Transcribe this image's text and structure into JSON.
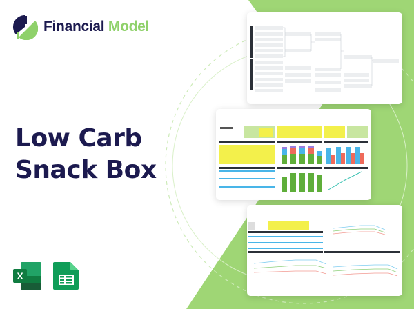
{
  "brand": {
    "name_part1": "Financial",
    "name_part2": "Model"
  },
  "title": {
    "line1": "Low Carb",
    "line2": "Snack Box"
  },
  "colors": {
    "navy": "#1c1a4f",
    "green": "#9fd675",
    "excel": "#1d7044",
    "sheets": "#0f9d58"
  },
  "previews": [
    {
      "name": "ratio-tree-diagram"
    },
    {
      "name": "dashboard"
    },
    {
      "name": "margin-charts"
    }
  ],
  "apps": [
    {
      "icon": "excel-icon",
      "letter": "X"
    },
    {
      "icon": "google-sheets-icon"
    }
  ]
}
